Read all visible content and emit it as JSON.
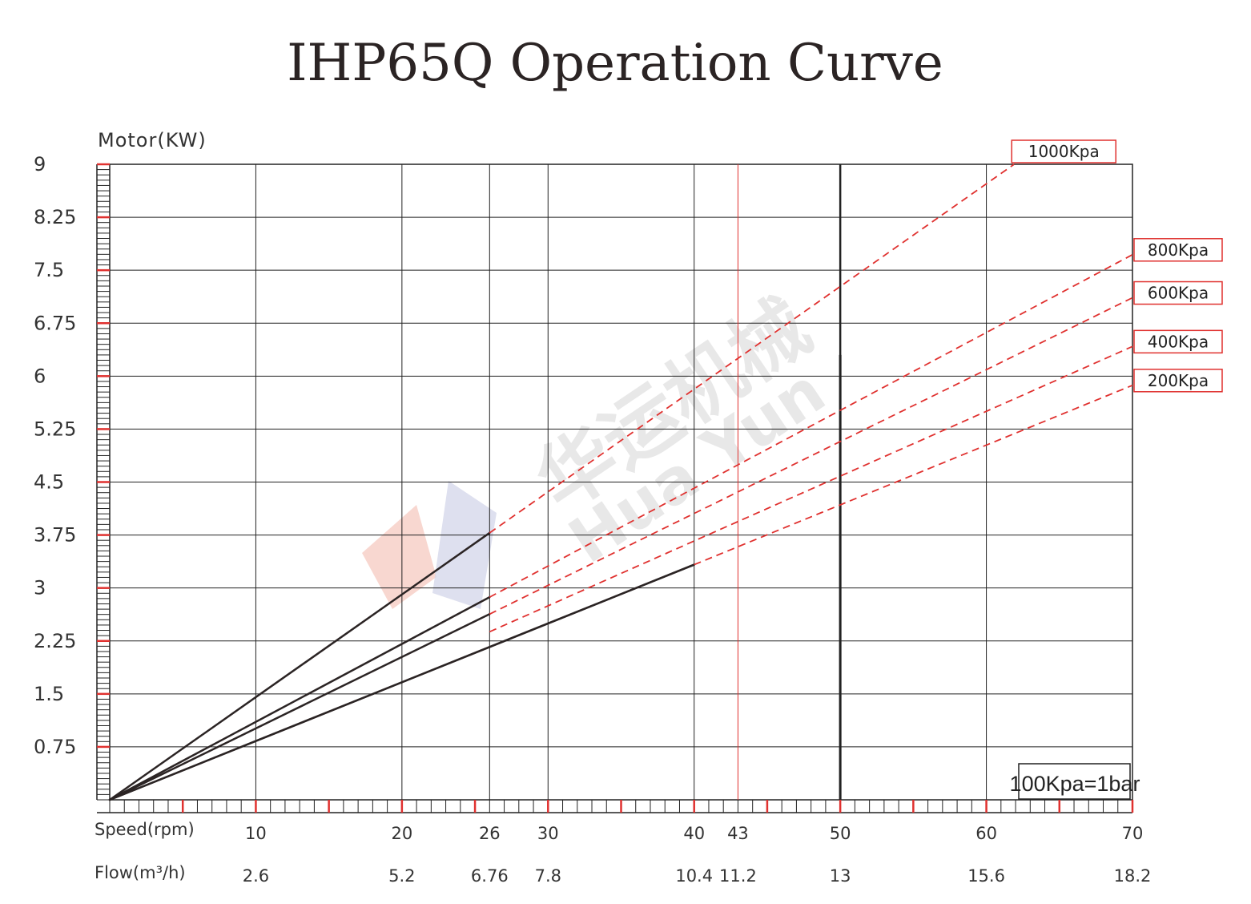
{
  "chart_data": {
    "type": "line",
    "title": "IHP65Q Operation Curve",
    "ylabel": "Motor(KW)",
    "ylim": [
      0,
      9
    ],
    "y_ticks": [
      "9",
      "8.25",
      "7.5",
      "6.75",
      "6",
      "5.25",
      "4.5",
      "3.75",
      "3",
      "2.25",
      "1.5",
      "0.75"
    ],
    "y_tick_values": [
      9,
      8.25,
      7.5,
      6.75,
      6,
      5.25,
      4.5,
      3.75,
      3,
      2.25,
      1.5,
      0.75
    ],
    "xlabel_speed": "Speed(rpm)",
    "xlabel_flow": "Flow(m³/h)",
    "xlim": [
      0,
      70
    ],
    "x_ticks": [
      {
        "speed": "10",
        "flow": "2.6",
        "value": 10
      },
      {
        "speed": "20",
        "flow": "5.2",
        "value": 20
      },
      {
        "speed": "26",
        "flow": "6.76",
        "value": 26
      },
      {
        "speed": "30",
        "flow": "7.8",
        "value": 30
      },
      {
        "speed": "40",
        "flow": "10.4",
        "value": 40
      },
      {
        "speed": "43",
        "flow": "11.2",
        "value": 43
      },
      {
        "speed": "50",
        "flow": "13",
        "value": 50
      },
      {
        "speed": "60",
        "flow": "15.6",
        "value": 60
      },
      {
        "speed": "70",
        "flow": "18.2",
        "value": 70
      }
    ],
    "grid": true,
    "reference_lines": [
      {
        "x": 43,
        "color": "#e0312f"
      },
      {
        "x": 50,
        "color": "#222222",
        "y_to": 6.3
      }
    ],
    "series": [
      {
        "name": "1000Kpa",
        "solid_x": [
          0,
          26
        ],
        "solid_y": [
          0,
          3.78
        ],
        "dashed_x": [
          26,
          61.9
        ],
        "dashed_y": [
          3.78,
          9.0
        ]
      },
      {
        "name": "800Kpa",
        "solid_x": [
          0,
          26
        ],
        "solid_y": [
          0,
          2.87
        ],
        "dashed_x": [
          26,
          70
        ],
        "dashed_y": [
          2.87,
          7.72
        ]
      },
      {
        "name": "600Kpa",
        "solid_x": [
          0,
          26
        ],
        "solid_y": [
          0,
          2.63
        ],
        "dashed_x": [
          26,
          70
        ],
        "dashed_y": [
          2.63,
          7.11
        ]
      },
      {
        "name": "400Kpa",
        "solid_x": [
          0,
          40
        ],
        "solid_y": [
          0,
          3.33
        ],
        "dashed_x": [
          26,
          70
        ],
        "dashed_y": [
          2.38,
          6.42
        ]
      },
      {
        "name": "200Kpa",
        "solid_x": [
          0,
          40
        ],
        "solid_y": [
          0,
          3.33
        ],
        "dashed_x": [
          40,
          70
        ],
        "dashed_y": [
          3.33,
          5.87
        ]
      }
    ],
    "note": "100Kpa=1bar",
    "colors": {
      "grid": "#222222",
      "dashed": "#e0312f",
      "solid": "#2b2424",
      "legend_border": "#e0312f"
    }
  },
  "watermark": {
    "cn": "华运机械",
    "en": "Hua Yun"
  }
}
